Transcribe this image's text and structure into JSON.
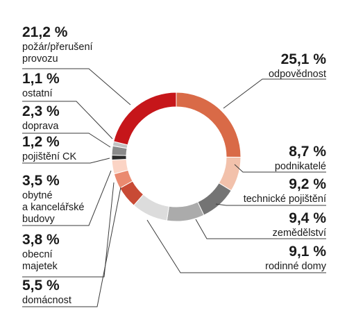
{
  "chart_data": {
    "type": "pie",
    "donut": true,
    "segments": [
      {
        "value": "25,1 %",
        "share": 25.1,
        "name": [
          "odpovědnost"
        ],
        "color": "#d96a47"
      },
      {
        "value": "8,7 %",
        "share": 8.7,
        "name": [
          "podnikatelé"
        ],
        "color": "#f2c1ab"
      },
      {
        "value": "9,2 %",
        "share": 9.2,
        "name": [
          "technické pojištění"
        ],
        "color": "#747474"
      },
      {
        "value": "9,4 %",
        "share": 9.4,
        "name": [
          "zemědělství"
        ],
        "color": "#ababab"
      },
      {
        "value": "9,1 %",
        "share": 9.1,
        "name": [
          "rodinné domy"
        ],
        "color": "#dcdcdc"
      },
      {
        "value": "5,5 %",
        "share": 5.5,
        "name": [
          "domácnost"
        ],
        "color": "#c84a35"
      },
      {
        "value": "3,8 %",
        "share": 3.8,
        "name": [
          "obecní",
          "majetek"
        ],
        "color": "#ea8a70"
      },
      {
        "value": "3,5 %",
        "share": 3.5,
        "name": [
          "obytné",
          "a kancelářské",
          "budovy"
        ],
        "color": "#fbd4c5"
      },
      {
        "value": "1,2 %",
        "share": 1.2,
        "name": [
          "pojištění CK"
        ],
        "color": "#2b2b2b"
      },
      {
        "value": "2,3 %",
        "share": 2.3,
        "name": [
          "doprava"
        ],
        "color": "#8a8a8a"
      },
      {
        "value": "1,1 %",
        "share": 1.1,
        "name": [
          "ostatní"
        ],
        "color": "#c2c2c2"
      },
      {
        "value": "21,2 %",
        "share": 21.2,
        "name": [
          "požár/přerušení",
          "provozu"
        ],
        "color": "#c6161a"
      }
    ]
  }
}
